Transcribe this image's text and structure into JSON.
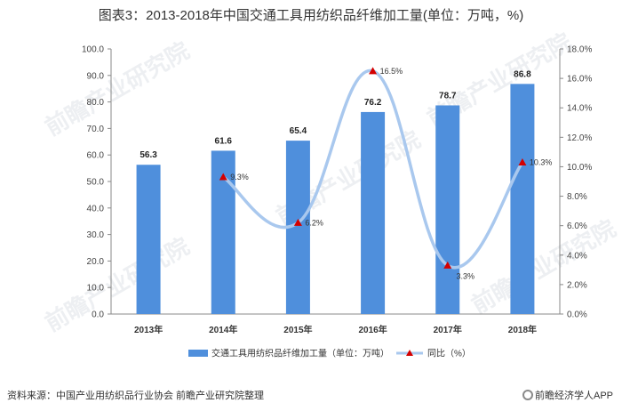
{
  "title": "图表3：2013-2018年中国交通工具用纺织品纤维加工量(单位：万吨，%)",
  "footer": {
    "source": "资料来源：中国产业用纺织品行业协会 前瞻产业研究院整理",
    "brand": "前瞻经济学人APP"
  },
  "watermark": "前瞻产业研究院",
  "colors": {
    "bar": "#4f8fdc",
    "line": "#a9c8ee",
    "marker": "#d40000"
  },
  "chart_data": {
    "type": "bar",
    "categories": [
      "2013年",
      "2014年",
      "2015年",
      "2016年",
      "2017年",
      "2018年"
    ],
    "series": [
      {
        "name": "交通工具用纺织品纤维加工量（单位：万吨）",
        "type": "bar",
        "axis": "left",
        "values": [
          56.3,
          61.6,
          65.4,
          76.2,
          78.7,
          86.8
        ],
        "labels": [
          "56.3",
          "61.6",
          "65.4",
          "76.2",
          "78.7",
          "86.8"
        ]
      },
      {
        "name": "同比（%）",
        "type": "line",
        "axis": "right",
        "values": [
          null,
          9.3,
          6.2,
          16.5,
          3.3,
          10.3
        ],
        "labels": [
          "",
          "9.3%",
          "6.2%",
          "16.5%",
          "3.3%",
          "10.3%"
        ]
      }
    ],
    "ylim_left": [
      0,
      100
    ],
    "yticks_left": [
      "0.0",
      "10.0",
      "20.0",
      "30.0",
      "40.0",
      "50.0",
      "60.0",
      "70.0",
      "80.0",
      "90.0",
      "100.0"
    ],
    "ylim_right": [
      0,
      18
    ],
    "yticks_right": [
      "0.0%",
      "2.0%",
      "4.0%",
      "6.0%",
      "8.0%",
      "10.0%",
      "12.0%",
      "14.0%",
      "16.0%",
      "18.0%"
    ],
    "grid": false,
    "legend": "bottom"
  }
}
